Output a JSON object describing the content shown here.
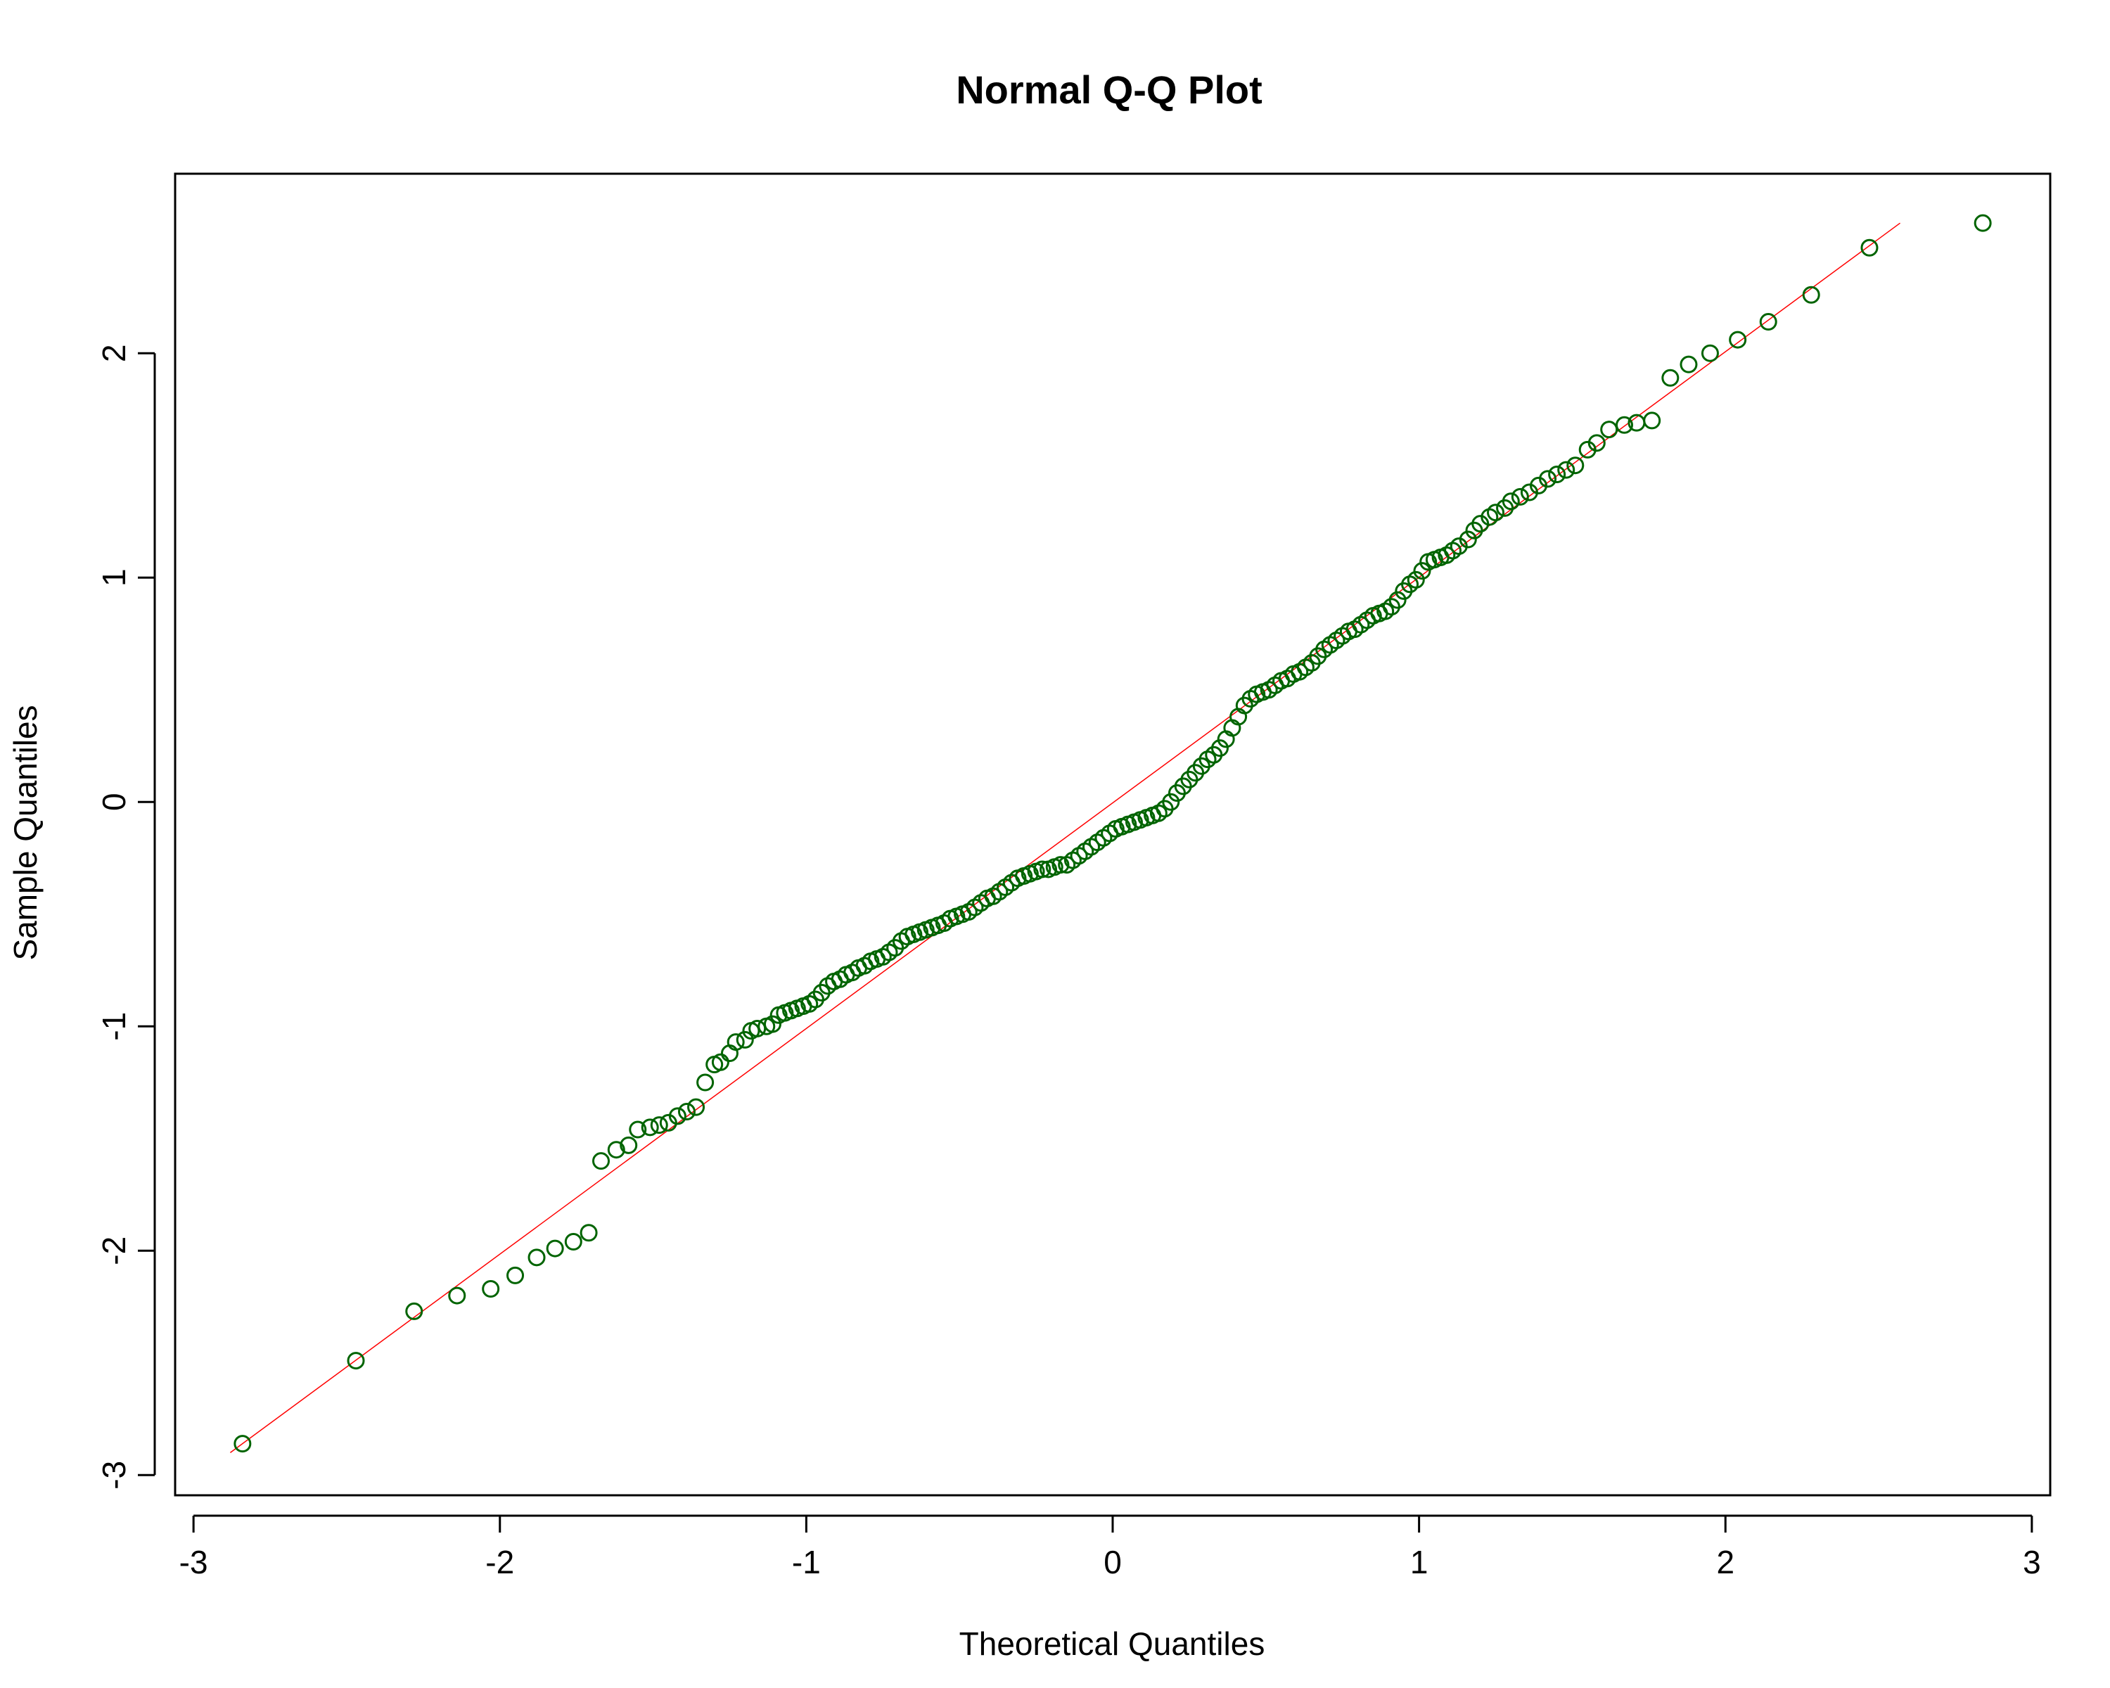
{
  "chart_data": {
    "type": "scatter",
    "title": "Normal Q-Q Plot",
    "xlabel": "Theoretical Quantiles",
    "ylabel": "Sample Quantiles",
    "xlim": [
      -3.06,
      3.06
    ],
    "ylim": [
      -3.09,
      2.8
    ],
    "x_ticks": [
      -3,
      -2,
      -1,
      0,
      1,
      2,
      3
    ],
    "y_ticks": [
      -3,
      -2,
      -1,
      0,
      1,
      2
    ],
    "grid": false,
    "legend": "none",
    "point_color": "#006400",
    "line_color": "#ff0000",
    "reference_line": {
      "x": [
        -2.88,
        2.57
      ],
      "y": [
        -2.9,
        2.58
      ]
    },
    "points": [
      [
        -2.84,
        -2.86
      ],
      [
        -2.47,
        -2.49
      ],
      [
        -2.28,
        -2.27
      ],
      [
        -2.14,
        -2.2
      ],
      [
        -2.03,
        -2.17
      ],
      [
        -1.95,
        -2.11
      ],
      [
        -1.88,
        -2.03
      ],
      [
        -1.82,
        -1.99
      ],
      [
        -1.76,
        -1.96
      ],
      [
        -1.71,
        -1.92
      ],
      [
        -1.67,
        -1.6
      ],
      [
        -1.62,
        -1.55
      ],
      [
        -1.58,
        -1.53
      ],
      [
        -1.55,
        -1.46
      ],
      [
        -1.51,
        -1.45
      ],
      [
        -1.48,
        -1.44
      ],
      [
        -1.45,
        -1.43
      ],
      [
        -1.42,
        -1.4
      ],
      [
        -1.39,
        -1.38
      ],
      [
        -1.36,
        -1.36
      ],
      [
        -1.33,
        -1.25
      ],
      [
        -1.3,
        -1.17
      ],
      [
        -1.28,
        -1.16
      ],
      [
        -1.25,
        -1.12
      ],
      [
        -1.23,
        -1.07
      ],
      [
        -1.2,
        -1.06
      ],
      [
        -1.18,
        -1.02
      ],
      [
        -1.16,
        -1.01
      ],
      [
        -1.13,
        -1.0
      ],
      [
        -1.11,
        -0.99
      ],
      [
        -1.09,
        -0.95
      ],
      [
        -1.07,
        -0.94
      ],
      [
        -1.05,
        -0.93
      ],
      [
        -1.03,
        -0.92
      ],
      [
        -1.01,
        -0.91
      ],
      [
        -0.99,
        -0.9
      ],
      [
        -0.97,
        -0.88
      ],
      [
        -0.95,
        -0.85
      ],
      [
        -0.93,
        -0.82
      ],
      [
        -0.91,
        -0.8
      ],
      [
        -0.89,
        -0.79
      ],
      [
        -0.87,
        -0.77
      ],
      [
        -0.85,
        -0.76
      ],
      [
        -0.83,
        -0.74
      ],
      [
        -0.81,
        -0.73
      ],
      [
        -0.79,
        -0.71
      ],
      [
        -0.77,
        -0.7
      ],
      [
        -0.75,
        -0.69
      ],
      [
        -0.73,
        -0.67
      ],
      [
        -0.71,
        -0.65
      ],
      [
        -0.69,
        -0.62
      ],
      [
        -0.67,
        -0.6
      ],
      [
        -0.65,
        -0.59
      ],
      [
        -0.63,
        -0.58
      ],
      [
        -0.61,
        -0.57
      ],
      [
        -0.59,
        -0.56
      ],
      [
        -0.57,
        -0.55
      ],
      [
        -0.55,
        -0.54
      ],
      [
        -0.53,
        -0.52
      ],
      [
        -0.51,
        -0.51
      ],
      [
        -0.49,
        -0.5
      ],
      [
        -0.47,
        -0.49
      ],
      [
        -0.45,
        -0.47
      ],
      [
        -0.43,
        -0.45
      ],
      [
        -0.41,
        -0.43
      ],
      [
        -0.39,
        -0.42
      ],
      [
        -0.37,
        -0.4
      ],
      [
        -0.35,
        -0.38
      ],
      [
        -0.33,
        -0.36
      ],
      [
        -0.31,
        -0.34
      ],
      [
        -0.29,
        -0.33
      ],
      [
        -0.27,
        -0.32
      ],
      [
        -0.25,
        -0.31
      ],
      [
        -0.23,
        -0.3
      ],
      [
        -0.21,
        -0.3
      ],
      [
        -0.19,
        -0.29
      ],
      [
        -0.17,
        -0.28
      ],
      [
        -0.15,
        -0.28
      ],
      [
        -0.13,
        -0.26
      ],
      [
        -0.11,
        -0.24
      ],
      [
        -0.09,
        -0.22
      ],
      [
        -0.07,
        -0.2
      ],
      [
        -0.05,
        -0.18
      ],
      [
        -0.03,
        -0.16
      ],
      [
        -0.01,
        -0.14
      ],
      [
        0.01,
        -0.12
      ],
      [
        0.03,
        -0.11
      ],
      [
        0.05,
        -0.1
      ],
      [
        0.07,
        -0.09
      ],
      [
        0.09,
        -0.08
      ],
      [
        0.11,
        -0.07
      ],
      [
        0.13,
        -0.06
      ],
      [
        0.15,
        -0.05
      ],
      [
        0.17,
        -0.03
      ],
      [
        0.19,
        0.0
      ],
      [
        0.21,
        0.04
      ],
      [
        0.23,
        0.07
      ],
      [
        0.25,
        0.1
      ],
      [
        0.27,
        0.13
      ],
      [
        0.29,
        0.16
      ],
      [
        0.31,
        0.19
      ],
      [
        0.33,
        0.21
      ],
      [
        0.35,
        0.24
      ],
      [
        0.37,
        0.28
      ],
      [
        0.39,
        0.33
      ],
      [
        0.41,
        0.38
      ],
      [
        0.43,
        0.43
      ],
      [
        0.45,
        0.46
      ],
      [
        0.47,
        0.48
      ],
      [
        0.49,
        0.49
      ],
      [
        0.51,
        0.5
      ],
      [
        0.53,
        0.52
      ],
      [
        0.55,
        0.54
      ],
      [
        0.57,
        0.55
      ],
      [
        0.59,
        0.57
      ],
      [
        0.61,
        0.58
      ],
      [
        0.63,
        0.6
      ],
      [
        0.65,
        0.62
      ],
      [
        0.67,
        0.65
      ],
      [
        0.69,
        0.68
      ],
      [
        0.71,
        0.7
      ],
      [
        0.73,
        0.72
      ],
      [
        0.75,
        0.74
      ],
      [
        0.77,
        0.76
      ],
      [
        0.79,
        0.77
      ],
      [
        0.81,
        0.79
      ],
      [
        0.83,
        0.81
      ],
      [
        0.85,
        0.83
      ],
      [
        0.87,
        0.84
      ],
      [
        0.89,
        0.85
      ],
      [
        0.91,
        0.87
      ],
      [
        0.93,
        0.9
      ],
      [
        0.95,
        0.94
      ],
      [
        0.97,
        0.97
      ],
      [
        0.99,
        0.99
      ],
      [
        1.01,
        1.03
      ],
      [
        1.03,
        1.07
      ],
      [
        1.05,
        1.08
      ],
      [
        1.07,
        1.09
      ],
      [
        1.09,
        1.1
      ],
      [
        1.11,
        1.12
      ],
      [
        1.13,
        1.14
      ],
      [
        1.16,
        1.17
      ],
      [
        1.18,
        1.21
      ],
      [
        1.2,
        1.24
      ],
      [
        1.23,
        1.27
      ],
      [
        1.25,
        1.29
      ],
      [
        1.28,
        1.31
      ],
      [
        1.3,
        1.34
      ],
      [
        1.33,
        1.36
      ],
      [
        1.36,
        1.38
      ],
      [
        1.39,
        1.41
      ],
      [
        1.42,
        1.44
      ],
      [
        1.45,
        1.46
      ],
      [
        1.48,
        1.48
      ],
      [
        1.51,
        1.5
      ],
      [
        1.55,
        1.57
      ],
      [
        1.58,
        1.6
      ],
      [
        1.62,
        1.66
      ],
      [
        1.67,
        1.68
      ],
      [
        1.71,
        1.69
      ],
      [
        1.76,
        1.7
      ],
      [
        1.82,
        1.89
      ],
      [
        1.88,
        1.95
      ],
      [
        1.95,
        2.0
      ],
      [
        2.04,
        2.06
      ],
      [
        2.14,
        2.14
      ],
      [
        2.28,
        2.26
      ],
      [
        2.47,
        2.47
      ],
      [
        2.84,
        2.58
      ]
    ]
  }
}
